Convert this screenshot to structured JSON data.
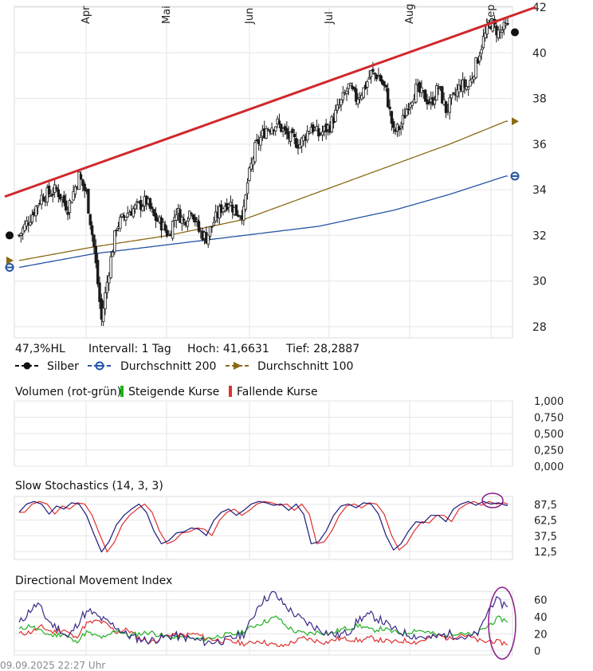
{
  "price_chart": {
    "chart_data": {
      "type": "candlestick",
      "months": [
        "Apr",
        "Mai",
        "Jun",
        "Jul",
        "Aug",
        "Sep"
      ],
      "y_ticks": [
        "42",
        "40",
        "38",
        "36",
        "34",
        "32",
        "30",
        "28"
      ],
      "ylim": [
        27.5,
        42
      ],
      "anchors_close": [
        [
          0,
          32.0
        ],
        [
          6,
          32.8
        ],
        [
          12,
          33.7
        ],
        [
          20,
          34.0
        ],
        [
          26,
          33.2
        ],
        [
          32,
          34.6
        ],
        [
          36,
          33.8
        ],
        [
          40,
          31.5
        ],
        [
          44,
          28.3
        ],
        [
          48,
          30.5
        ],
        [
          52,
          32.4
        ],
        [
          58,
          33.0
        ],
        [
          64,
          33.3
        ],
        [
          68,
          33.5
        ],
        [
          72,
          32.8
        ],
        [
          76,
          32.5
        ],
        [
          80,
          32.0
        ],
        [
          84,
          33.1
        ],
        [
          88,
          32.6
        ],
        [
          92,
          33.2
        ],
        [
          96,
          32.2
        ],
        [
          100,
          31.9
        ],
        [
          104,
          32.6
        ],
        [
          108,
          33.2
        ],
        [
          112,
          33.5
        ],
        [
          116,
          33.0
        ],
        [
          120,
          33.0
        ],
        [
          122,
          34.3
        ],
        [
          126,
          35.8
        ],
        [
          132,
          36.7
        ],
        [
          138,
          36.9
        ],
        [
          144,
          36.3
        ],
        [
          150,
          36.0
        ],
        [
          156,
          36.8
        ],
        [
          160,
          36.4
        ],
        [
          166,
          36.8
        ],
        [
          170,
          37.5
        ],
        [
          176,
          38.5
        ],
        [
          180,
          38.0
        ],
        [
          184,
          38.4
        ],
        [
          188,
          39.1
        ],
        [
          192,
          39.0
        ],
        [
          196,
          38.3
        ],
        [
          200,
          36.5
        ],
        [
          204,
          36.8
        ],
        [
          208,
          37.8
        ],
        [
          212,
          38.4
        ],
        [
          216,
          38.1
        ],
        [
          220,
          37.8
        ],
        [
          224,
          38.5
        ],
        [
          228,
          37.5
        ],
        [
          232,
          38.0
        ],
        [
          236,
          38.6
        ],
        [
          240,
          38.5
        ],
        [
          244,
          39.5
        ],
        [
          248,
          40.6
        ],
        [
          252,
          41.3
        ],
        [
          256,
          40.9
        ],
        [
          260,
          41.1
        ]
      ],
      "anchors_ma200": [
        [
          0,
          30.6
        ],
        [
          40,
          31.2
        ],
        [
          80,
          31.6
        ],
        [
          120,
          32.0
        ],
        [
          160,
          32.4
        ],
        [
          200,
          33.1
        ],
        [
          230,
          33.8
        ],
        [
          260,
          34.6
        ]
      ],
      "anchors_ma100": [
        [
          0,
          30.9
        ],
        [
          40,
          31.5
        ],
        [
          80,
          32.0
        ],
        [
          120,
          32.7
        ],
        [
          160,
          33.9
        ],
        [
          200,
          35.1
        ],
        [
          230,
          36.0
        ],
        [
          260,
          37.0
        ]
      ],
      "n_days": 262,
      "last_values": {
        "silber": 40.9,
        "ma200": 34.6,
        "ma100": 37.0
      },
      "first_values": {
        "silber": 32.0,
        "ma200": 30.6,
        "ma100": 30.9
      },
      "trendline": [
        [
          0,
          33.7
        ],
        [
          262,
          42.0
        ]
      ],
      "colors": {
        "candle": "#1a1a1a",
        "silber": "#111111",
        "ma200": "#2455a4",
        "ma100": "#8b6914",
        "trend": "#d0282c"
      }
    },
    "info_row": {
      "range": "47,3%HL",
      "interval": "Intervall: 1 Tag",
      "high": "Hoch: 41,6631",
      "low": "Tief: 28,2887"
    },
    "legend": {
      "silber": "Silber",
      "ma200": "Durchschnitt 200",
      "ma100": "Durchschnitt 100"
    }
  },
  "volume_panel": {
    "title": "Volumen (rot-grün)",
    "up_label": "Steigende Kurse",
    "down_label": "Fallende Kurse",
    "colors": {
      "up": "#16b616",
      "down": "#e03030"
    },
    "chart_data": {
      "type": "bar",
      "y_ticks": [
        "1,000",
        "0,750",
        "0,500",
        "0,250",
        "0,000"
      ],
      "ylim": [
        0,
        1
      ]
    }
  },
  "stochastics_panel": {
    "title": "Slow Stochastics (14, 3, 3)",
    "chart_data": {
      "type": "line",
      "y_ticks": [
        "87,5",
        "62,5",
        "37,5",
        "12,5"
      ],
      "ylim": [
        0,
        100
      ],
      "k_anchors": [
        [
          0,
          75
        ],
        [
          4,
          88
        ],
        [
          8,
          92
        ],
        [
          12,
          88
        ],
        [
          16,
          72
        ],
        [
          20,
          85
        ],
        [
          24,
          80
        ],
        [
          28,
          90
        ],
        [
          32,
          88
        ],
        [
          36,
          70
        ],
        [
          40,
          40
        ],
        [
          44,
          12
        ],
        [
          48,
          28
        ],
        [
          52,
          55
        ],
        [
          56,
          70
        ],
        [
          60,
          80
        ],
        [
          64,
          88
        ],
        [
          68,
          75
        ],
        [
          72,
          45
        ],
        [
          76,
          25
        ],
        [
          80,
          30
        ],
        [
          84,
          42
        ],
        [
          88,
          44
        ],
        [
          92,
          50
        ],
        [
          96,
          48
        ],
        [
          100,
          38
        ],
        [
          104,
          62
        ],
        [
          108,
          75
        ],
        [
          112,
          80
        ],
        [
          116,
          70
        ],
        [
          120,
          78
        ],
        [
          124,
          88
        ],
        [
          128,
          92
        ],
        [
          132,
          90
        ],
        [
          136,
          86
        ],
        [
          140,
          88
        ],
        [
          144,
          78
        ],
        [
          148,
          88
        ],
        [
          152,
          72
        ],
        [
          156,
          25
        ],
        [
          160,
          28
        ],
        [
          164,
          45
        ],
        [
          168,
          70
        ],
        [
          172,
          85
        ],
        [
          176,
          88
        ],
        [
          180,
          82
        ],
        [
          184,
          90
        ],
        [
          188,
          88
        ],
        [
          192,
          72
        ],
        [
          196,
          38
        ],
        [
          200,
          15
        ],
        [
          204,
          25
        ],
        [
          208,
          45
        ],
        [
          212,
          60
        ],
        [
          216,
          58
        ],
        [
          220,
          70
        ],
        [
          224,
          70
        ],
        [
          228,
          60
        ],
        [
          232,
          80
        ],
        [
          236,
          88
        ],
        [
          240,
          92
        ],
        [
          244,
          86
        ],
        [
          248,
          92
        ],
        [
          252,
          88
        ],
        [
          256,
          90
        ],
        [
          260,
          86
        ]
      ],
      "d_lag": 3,
      "colors": {
        "k": "#1a1a7a",
        "d": "#e03030",
        "marker": "#8b1a8b"
      }
    }
  },
  "dmi_panel": {
    "title": "Directional Movement Index",
    "chart_data": {
      "type": "line",
      "y_ticks": [
        "60",
        "40",
        "20",
        "0"
      ],
      "ylim": [
        -5,
        70
      ],
      "adx_anchors": [
        [
          0,
          32
        ],
        [
          6,
          48
        ],
        [
          10,
          55
        ],
        [
          14,
          40
        ],
        [
          18,
          30
        ],
        [
          22,
          25
        ],
        [
          26,
          15
        ],
        [
          30,
          28
        ],
        [
          34,
          42
        ],
        [
          38,
          46
        ],
        [
          42,
          40
        ],
        [
          46,
          35
        ],
        [
          52,
          28
        ],
        [
          58,
          18
        ],
        [
          64,
          14
        ],
        [
          70,
          12
        ],
        [
          76,
          15
        ],
        [
          82,
          18
        ],
        [
          90,
          15
        ],
        [
          100,
          10
        ],
        [
          110,
          12
        ],
        [
          120,
          20
        ],
        [
          124,
          35
        ],
        [
          128,
          55
        ],
        [
          132,
          62
        ],
        [
          136,
          68
        ],
        [
          140,
          58
        ],
        [
          146,
          45
        ],
        [
          152,
          35
        ],
        [
          158,
          28
        ],
        [
          164,
          22
        ],
        [
          170,
          18
        ],
        [
          176,
          22
        ],
        [
          182,
          38
        ],
        [
          188,
          42
        ],
        [
          194,
          35
        ],
        [
          200,
          25
        ],
        [
          210,
          18
        ],
        [
          220,
          15
        ],
        [
          230,
          20
        ],
        [
          240,
          15
        ],
        [
          246,
          22
        ],
        [
          250,
          45
        ],
        [
          254,
          60
        ],
        [
          258,
          55
        ],
        [
          260,
          55
        ]
      ],
      "pdi_anchors": [
        [
          0,
          25
        ],
        [
          6,
          30
        ],
        [
          12,
          22
        ],
        [
          18,
          18
        ],
        [
          24,
          20
        ],
        [
          30,
          10
        ],
        [
          36,
          22
        ],
        [
          40,
          18
        ],
        [
          46,
          15
        ],
        [
          52,
          25
        ],
        [
          58,
          18
        ],
        [
          64,
          20
        ],
        [
          70,
          22
        ],
        [
          76,
          18
        ],
        [
          82,
          15
        ],
        [
          88,
          15
        ],
        [
          94,
          14
        ],
        [
          100,
          14
        ],
        [
          108,
          18
        ],
        [
          116,
          20
        ],
        [
          122,
          25
        ],
        [
          126,
          30
        ],
        [
          132,
          35
        ],
        [
          138,
          40
        ],
        [
          142,
          30
        ],
        [
          148,
          22
        ],
        [
          154,
          20
        ],
        [
          160,
          22
        ],
        [
          166,
          20
        ],
        [
          172,
          25
        ],
        [
          178,
          28
        ],
        [
          182,
          30
        ],
        [
          188,
          24
        ],
        [
          194,
          26
        ],
        [
          200,
          22
        ],
        [
          206,
          20
        ],
        [
          212,
          25
        ],
        [
          218,
          22
        ],
        [
          224,
          18
        ],
        [
          230,
          20
        ],
        [
          236,
          22
        ],
        [
          242,
          18
        ],
        [
          248,
          25
        ],
        [
          252,
          32
        ],
        [
          256,
          38
        ],
        [
          260,
          36
        ]
      ],
      "mdi_anchors": [
        [
          0,
          20
        ],
        [
          6,
          22
        ],
        [
          12,
          28
        ],
        [
          18,
          22
        ],
        [
          24,
          25
        ],
        [
          30,
          15
        ],
        [
          36,
          32
        ],
        [
          42,
          35
        ],
        [
          46,
          32
        ],
        [
          52,
          22
        ],
        [
          58,
          25
        ],
        [
          64,
          15
        ],
        [
          70,
          10
        ],
        [
          76,
          15
        ],
        [
          82,
          20
        ],
        [
          88,
          18
        ],
        [
          94,
          20
        ],
        [
          100,
          15
        ],
        [
          108,
          12
        ],
        [
          116,
          10
        ],
        [
          122,
          8
        ],
        [
          128,
          12
        ],
        [
          134,
          8
        ],
        [
          140,
          5
        ],
        [
          146,
          10
        ],
        [
          152,
          15
        ],
        [
          158,
          12
        ],
        [
          164,
          10
        ],
        [
          170,
          14
        ],
        [
          176,
          14
        ],
        [
          182,
          12
        ],
        [
          188,
          15
        ],
        [
          194,
          12
        ],
        [
          200,
          10
        ],
        [
          206,
          12
        ],
        [
          212,
          10
        ],
        [
          218,
          14
        ],
        [
          224,
          18
        ],
        [
          230,
          14
        ],
        [
          236,
          20
        ],
        [
          242,
          15
        ],
        [
          248,
          10
        ],
        [
          252,
          12
        ],
        [
          256,
          10
        ],
        [
          260,
          9
        ]
      ],
      "colors": {
        "adx": "#3a2a8a",
        "pdi": "#22b022",
        "mdi": "#e03030",
        "marker": "#8b1a8b"
      }
    }
  },
  "timestamp": "09.09.2025 22:27 Uhr"
}
